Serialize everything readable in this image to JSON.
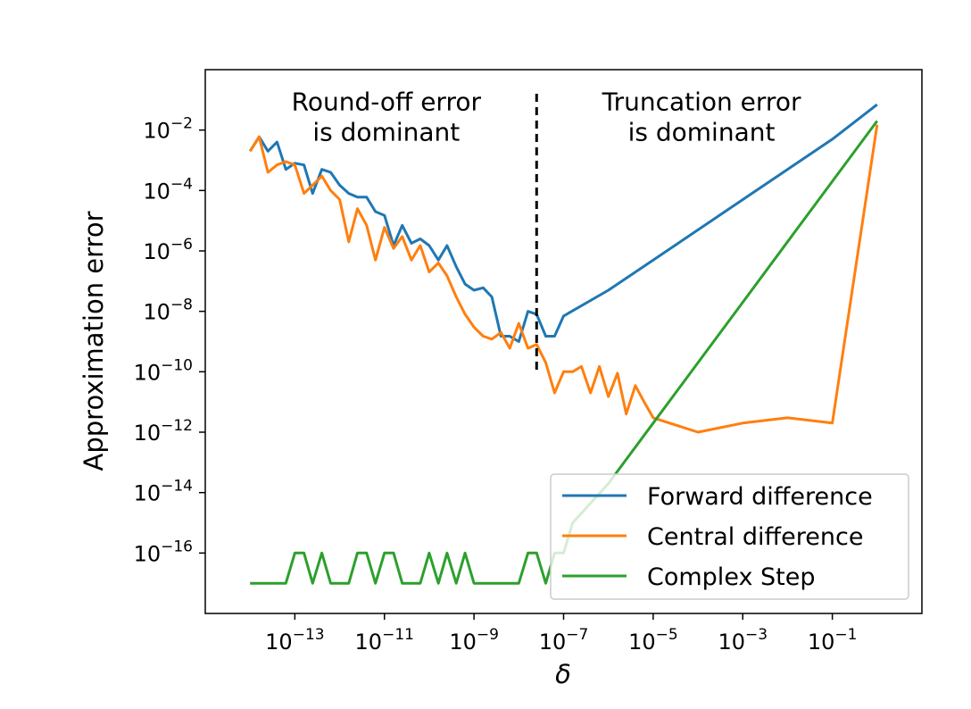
{
  "chart_data": {
    "type": "line",
    "xscale": "log",
    "yscale": "log",
    "xlabel": "δ",
    "ylabel": "Approximation error",
    "xlim": [
      1e-15,
      10
    ],
    "ylim": [
      1e-18,
      1
    ],
    "x_ticks": [
      {
        "base": "10",
        "exp": "−13",
        "value": 1e-13
      },
      {
        "base": "10",
        "exp": "−11",
        "value": 1e-11
      },
      {
        "base": "10",
        "exp": "−9",
        "value": 1e-09
      },
      {
        "base": "10",
        "exp": "−7",
        "value": 1e-07
      },
      {
        "base": "10",
        "exp": "−5",
        "value": 1e-05
      },
      {
        "base": "10",
        "exp": "−3",
        "value": 0.001
      },
      {
        "base": "10",
        "exp": "−1",
        "value": 0.1
      }
    ],
    "y_ticks": [
      {
        "base": "10",
        "exp": "−2",
        "value": 0.01
      },
      {
        "base": "10",
        "exp": "−4",
        "value": 0.0001
      },
      {
        "base": "10",
        "exp": "−6",
        "value": 1e-06
      },
      {
        "base": "10",
        "exp": "−8",
        "value": 1e-08
      },
      {
        "base": "10",
        "exp": "−10",
        "value": 1e-10
      },
      {
        "base": "10",
        "exp": "−12",
        "value": 1e-12
      },
      {
        "base": "10",
        "exp": "−14",
        "value": 1e-14
      },
      {
        "base": "10",
        "exp": "−16",
        "value": 1e-16
      }
    ],
    "divider_x": 2.5e-08,
    "annotations": [
      {
        "lines": [
          "Round-off error",
          "is dominant"
        ],
        "x": 1.1e-11,
        "y": 0.045
      },
      {
        "lines": [
          "Truncation error",
          "is dominant"
        ],
        "x": 0.00012,
        "y": 0.045
      }
    ],
    "legend_position": "lower-right",
    "series": [
      {
        "name": "Forward difference",
        "color": "#1f77b4",
        "x": [
          1e-14,
          1.6e-14,
          2.5e-14,
          4e-14,
          6.3e-14,
          1e-13,
          1.6e-13,
          2.5e-13,
          4e-13,
          6.3e-13,
          1e-12,
          1.6e-12,
          2.5e-12,
          4e-12,
          6.3e-12,
          1e-11,
          1.6e-11,
          2.5e-11,
          4e-11,
          6.3e-11,
          1e-10,
          1.6e-10,
          2.5e-10,
          4e-10,
          6.3e-10,
          1e-09,
          1.6e-09,
          2.5e-09,
          4e-09,
          6.3e-09,
          1e-08,
          1.6e-08,
          2.5e-08,
          4e-08,
          6.3e-08,
          1e-07,
          1e-06,
          1e-05,
          0.0001,
          0.001,
          0.01,
          0.1,
          1
        ],
        "y": [
          0.002,
          0.006,
          0.002,
          0.004,
          0.0005,
          0.0008,
          0.0007,
          8e-05,
          0.0005,
          0.0004,
          0.00015,
          8e-05,
          6e-05,
          6e-05,
          2e-05,
          1.5e-05,
          1.5e-06,
          7e-06,
          1.8e-06,
          2.5e-06,
          1.5e-06,
          5e-07,
          1.5e-06,
          3e-07,
          8e-08,
          5e-08,
          6e-08,
          3e-08,
          1.5e-09,
          1.5e-09,
          1e-09,
          1e-08,
          8e-09,
          1.5e-09,
          1.5e-09,
          7e-09,
          5e-08,
          5e-07,
          5e-06,
          5e-05,
          0.0005,
          0.005,
          0.07
        ]
      },
      {
        "name": "Central difference",
        "color": "#ff7f0e",
        "x": [
          1e-14,
          1.6e-14,
          2.5e-14,
          4e-14,
          6.3e-14,
          1e-13,
          1.6e-13,
          2.5e-13,
          4e-13,
          6.3e-13,
          1e-12,
          1.6e-12,
          2.5e-12,
          4e-12,
          6.3e-12,
          1e-11,
          1.6e-11,
          2.5e-11,
          4e-11,
          6.3e-11,
          1e-10,
          1.6e-10,
          2.5e-10,
          4e-10,
          6.3e-10,
          1e-09,
          1.6e-09,
          2.5e-09,
          4e-09,
          6.3e-09,
          1e-08,
          1.6e-08,
          2.5e-08,
          4e-08,
          6.3e-08,
          1e-07,
          1.6e-07,
          2.5e-07,
          4e-07,
          6.3e-07,
          1e-06,
          1.6e-06,
          2.5e-06,
          4e-06,
          6.3e-06,
          1e-05,
          0.0001,
          0.001,
          0.01,
          0.1,
          1
        ],
        "y": [
          0.002,
          0.006,
          0.0004,
          0.0007,
          0.0009,
          0.0007,
          8e-05,
          0.00015,
          0.0003,
          0.0001,
          5e-05,
          2e-06,
          2.5e-05,
          7e-06,
          5e-07,
          6e-06,
          1.2e-06,
          3e-06,
          5e-07,
          1.5e-06,
          2e-07,
          4e-07,
          1.5e-07,
          3e-08,
          8e-09,
          3e-09,
          1.5e-09,
          1.2e-09,
          2e-09,
          6e-10,
          4e-09,
          6e-10,
          8e-10,
          2e-10,
          2e-11,
          1e-10,
          1e-10,
          1.5e-10,
          2e-11,
          1.5e-10,
          1.5e-11,
          9e-11,
          4e-12,
          3.5e-11,
          1e-11,
          3e-12,
          1e-12,
          2e-12,
          3e-12,
          2e-12,
          0.015
        ]
      },
      {
        "name": "Complex Step",
        "color": "#2ca02c",
        "x": [
          1e-14,
          1.6e-14,
          2.5e-14,
          4e-14,
          6.3e-14,
          1e-13,
          1.6e-13,
          2.5e-13,
          4e-13,
          6.3e-13,
          1e-12,
          1.6e-12,
          2.5e-12,
          4e-12,
          6.3e-12,
          1e-11,
          1.6e-11,
          2.5e-11,
          4e-11,
          6.3e-11,
          1e-10,
          1.6e-10,
          2.5e-10,
          4e-10,
          6.3e-10,
          1e-09,
          1.6e-09,
          2.5e-09,
          4e-09,
          6.3e-09,
          1e-08,
          1.6e-08,
          2.5e-08,
          4e-08,
          6.3e-08,
          1e-07,
          1.6e-07,
          1e-06,
          1e-05,
          0.0001,
          0.001,
          0.01,
          0.1,
          1
        ],
        "y": [
          1e-17,
          1e-17,
          1e-17,
          1e-17,
          1e-17,
          1e-16,
          1e-16,
          1e-17,
          1e-16,
          1e-17,
          1e-17,
          1e-17,
          1e-16,
          1e-16,
          1e-17,
          1e-16,
          1e-16,
          1e-17,
          1e-17,
          1e-17,
          1e-16,
          1e-17,
          1e-16,
          1e-17,
          1e-16,
          1e-17,
          1e-17,
          1e-17,
          1e-17,
          1e-17,
          1e-17,
          1e-16,
          1e-16,
          1e-17,
          1e-16,
          1e-16,
          1e-15,
          2e-14,
          2e-12,
          2e-10,
          2e-08,
          2e-06,
          0.0002,
          0.02
        ]
      }
    ]
  }
}
